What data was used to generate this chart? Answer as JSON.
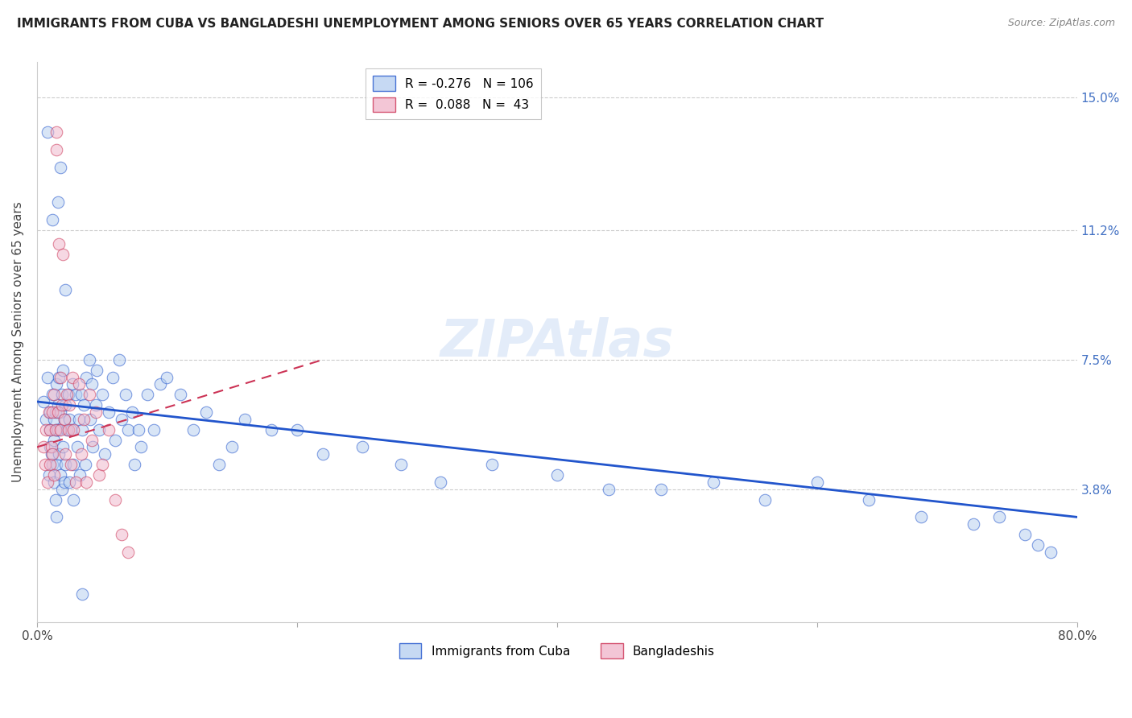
{
  "title": "IMMIGRANTS FROM CUBA VS BANGLADESHI UNEMPLOYMENT AMONG SENIORS OVER 65 YEARS CORRELATION CHART",
  "source": "Source: ZipAtlas.com",
  "ylabel": "Unemployment Among Seniors over 65 years",
  "ylabel_ticks": [
    "15.0%",
    "11.2%",
    "7.5%",
    "3.8%"
  ],
  "ylabel_values": [
    0.15,
    0.112,
    0.075,
    0.038
  ],
  "xlim": [
    0.0,
    0.8
  ],
  "ylim": [
    0.0,
    0.16
  ],
  "blue_color": "#b8d0f0",
  "pink_color": "#f0b8cc",
  "blue_line_color": "#2255cc",
  "pink_line_color": "#cc3355",
  "blue_line_x0": 0.0,
  "blue_line_y0": 0.063,
  "blue_line_x1": 0.8,
  "blue_line_y1": 0.03,
  "pink_line_x0": 0.0,
  "pink_line_y0": 0.05,
  "pink_line_x1": 0.22,
  "pink_line_y1": 0.075,
  "blue_x": [
    0.005,
    0.007,
    0.008,
    0.009,
    0.01,
    0.01,
    0.01,
    0.011,
    0.012,
    0.012,
    0.013,
    0.013,
    0.013,
    0.014,
    0.014,
    0.015,
    0.015,
    0.015,
    0.015,
    0.016,
    0.016,
    0.017,
    0.017,
    0.018,
    0.018,
    0.019,
    0.019,
    0.02,
    0.02,
    0.021,
    0.021,
    0.022,
    0.022,
    0.023,
    0.024,
    0.025,
    0.025,
    0.026,
    0.027,
    0.028,
    0.028,
    0.03,
    0.031,
    0.032,
    0.033,
    0.034,
    0.035,
    0.036,
    0.037,
    0.038,
    0.04,
    0.041,
    0.042,
    0.043,
    0.045,
    0.046,
    0.048,
    0.05,
    0.052,
    0.055,
    0.058,
    0.06,
    0.063,
    0.065,
    0.068,
    0.07,
    0.073,
    0.075,
    0.078,
    0.08,
    0.085,
    0.09,
    0.095,
    0.1,
    0.11,
    0.12,
    0.13,
    0.14,
    0.15,
    0.16,
    0.18,
    0.2,
    0.22,
    0.25,
    0.28,
    0.31,
    0.35,
    0.4,
    0.44,
    0.48,
    0.52,
    0.56,
    0.6,
    0.64,
    0.68,
    0.72,
    0.74,
    0.76,
    0.77,
    0.78,
    0.018,
    0.022,
    0.012,
    0.016,
    0.008,
    0.035
  ],
  "blue_y": [
    0.063,
    0.058,
    0.07,
    0.042,
    0.055,
    0.06,
    0.05,
    0.048,
    0.065,
    0.045,
    0.058,
    0.052,
    0.04,
    0.06,
    0.035,
    0.068,
    0.055,
    0.045,
    0.03,
    0.062,
    0.055,
    0.07,
    0.048,
    0.06,
    0.042,
    0.065,
    0.038,
    0.072,
    0.05,
    0.058,
    0.04,
    0.062,
    0.045,
    0.055,
    0.065,
    0.058,
    0.04,
    0.055,
    0.068,
    0.045,
    0.035,
    0.065,
    0.05,
    0.058,
    0.042,
    0.065,
    0.055,
    0.062,
    0.045,
    0.07,
    0.075,
    0.058,
    0.068,
    0.05,
    0.062,
    0.072,
    0.055,
    0.065,
    0.048,
    0.06,
    0.07,
    0.052,
    0.075,
    0.058,
    0.065,
    0.055,
    0.06,
    0.045,
    0.055,
    0.05,
    0.065,
    0.055,
    0.068,
    0.07,
    0.065,
    0.055,
    0.06,
    0.045,
    0.05,
    0.058,
    0.055,
    0.055,
    0.048,
    0.05,
    0.045,
    0.04,
    0.045,
    0.042,
    0.038,
    0.038,
    0.04,
    0.035,
    0.04,
    0.035,
    0.03,
    0.028,
    0.03,
    0.025,
    0.022,
    0.02,
    0.13,
    0.095,
    0.115,
    0.12,
    0.14,
    0.008
  ],
  "pink_x": [
    0.005,
    0.006,
    0.007,
    0.008,
    0.009,
    0.01,
    0.01,
    0.011,
    0.012,
    0.012,
    0.013,
    0.013,
    0.014,
    0.015,
    0.015,
    0.016,
    0.017,
    0.018,
    0.018,
    0.019,
    0.02,
    0.021,
    0.022,
    0.023,
    0.024,
    0.025,
    0.026,
    0.027,
    0.028,
    0.03,
    0.032,
    0.034,
    0.036,
    0.038,
    0.04,
    0.042,
    0.045,
    0.048,
    0.05,
    0.055,
    0.06,
    0.065,
    0.07
  ],
  "pink_y": [
    0.05,
    0.045,
    0.055,
    0.04,
    0.06,
    0.045,
    0.055,
    0.05,
    0.06,
    0.048,
    0.065,
    0.042,
    0.055,
    0.14,
    0.135,
    0.06,
    0.108,
    0.07,
    0.055,
    0.062,
    0.105,
    0.058,
    0.048,
    0.065,
    0.055,
    0.062,
    0.045,
    0.07,
    0.055,
    0.04,
    0.068,
    0.048,
    0.058,
    0.04,
    0.065,
    0.052,
    0.06,
    0.042,
    0.045,
    0.055,
    0.035,
    0.025,
    0.02
  ]
}
